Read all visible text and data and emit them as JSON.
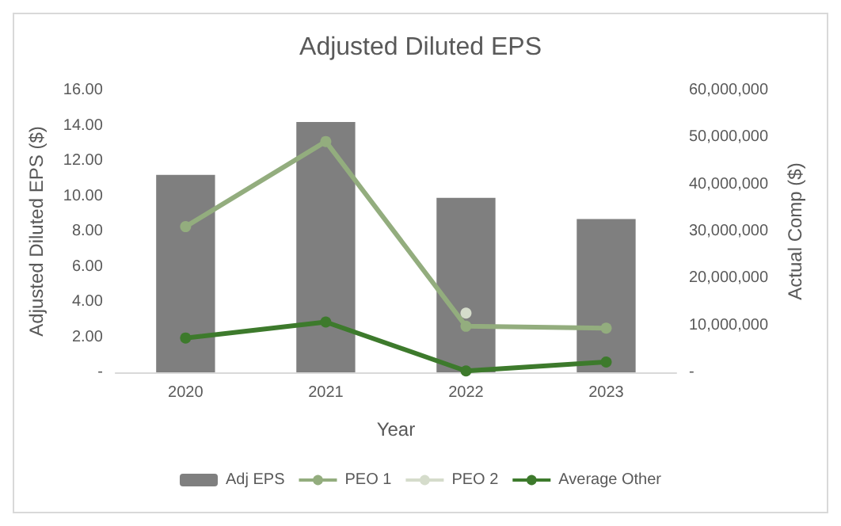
{
  "chart_data": {
    "type": "bar",
    "title": "Adjusted Diluted EPS",
    "xlabel": "Year",
    "ylabel": "Adjusted Diluted EPS ($)",
    "y2label": "Actual Comp ($)",
    "categories": [
      "2020",
      "2021",
      "2022",
      "2023"
    ],
    "series": [
      {
        "name": "Adj EPS",
        "color": "#7f7f7f",
        "values": [
          11.2,
          14.2,
          9.9,
          8.7
        ]
      },
      {
        "name": "PEO 1",
        "type": "line",
        "axis": "y2",
        "color": "#93ad7e",
        "values": [
          31000000,
          49100000,
          9800000,
          9400000
        ]
      },
      {
        "name": "PEO 2",
        "type": "line",
        "axis": "y2",
        "color": "#d5dccb",
        "values": [
          null,
          null,
          12600000,
          null
        ]
      },
      {
        "name": "Average Other",
        "type": "line",
        "axis": "y2",
        "color": "#3d7a2c",
        "values": [
          7300000,
          10700000,
          300000,
          2200000
        ]
      }
    ],
    "ylim": [
      0,
      16
    ],
    "yticks": [
      {
        "value": 0,
        "label": "-"
      },
      {
        "value": 2,
        "label": "2.00"
      },
      {
        "value": 4,
        "label": "4.00"
      },
      {
        "value": 6,
        "label": "6.00"
      },
      {
        "value": 8,
        "label": "8.00"
      },
      {
        "value": 10,
        "label": "10.00"
      },
      {
        "value": 12,
        "label": "12.00"
      },
      {
        "value": 14,
        "label": "14.00"
      },
      {
        "value": 16,
        "label": "16.00"
      }
    ],
    "y2lim": [
      0,
      60000000
    ],
    "y2ticks": [
      {
        "value": 0,
        "label": "-"
      },
      {
        "value": 10000000,
        "label": "10,000,000"
      },
      {
        "value": 20000000,
        "label": "20,000,000"
      },
      {
        "value": 30000000,
        "label": "30,000,000"
      },
      {
        "value": 40000000,
        "label": "40,000,000"
      },
      {
        "value": 50000000,
        "label": "50,000,000"
      },
      {
        "value": 60000000,
        "label": "60,000,000"
      }
    ],
    "grid": false,
    "legend": "bottom",
    "marker": "circle"
  }
}
